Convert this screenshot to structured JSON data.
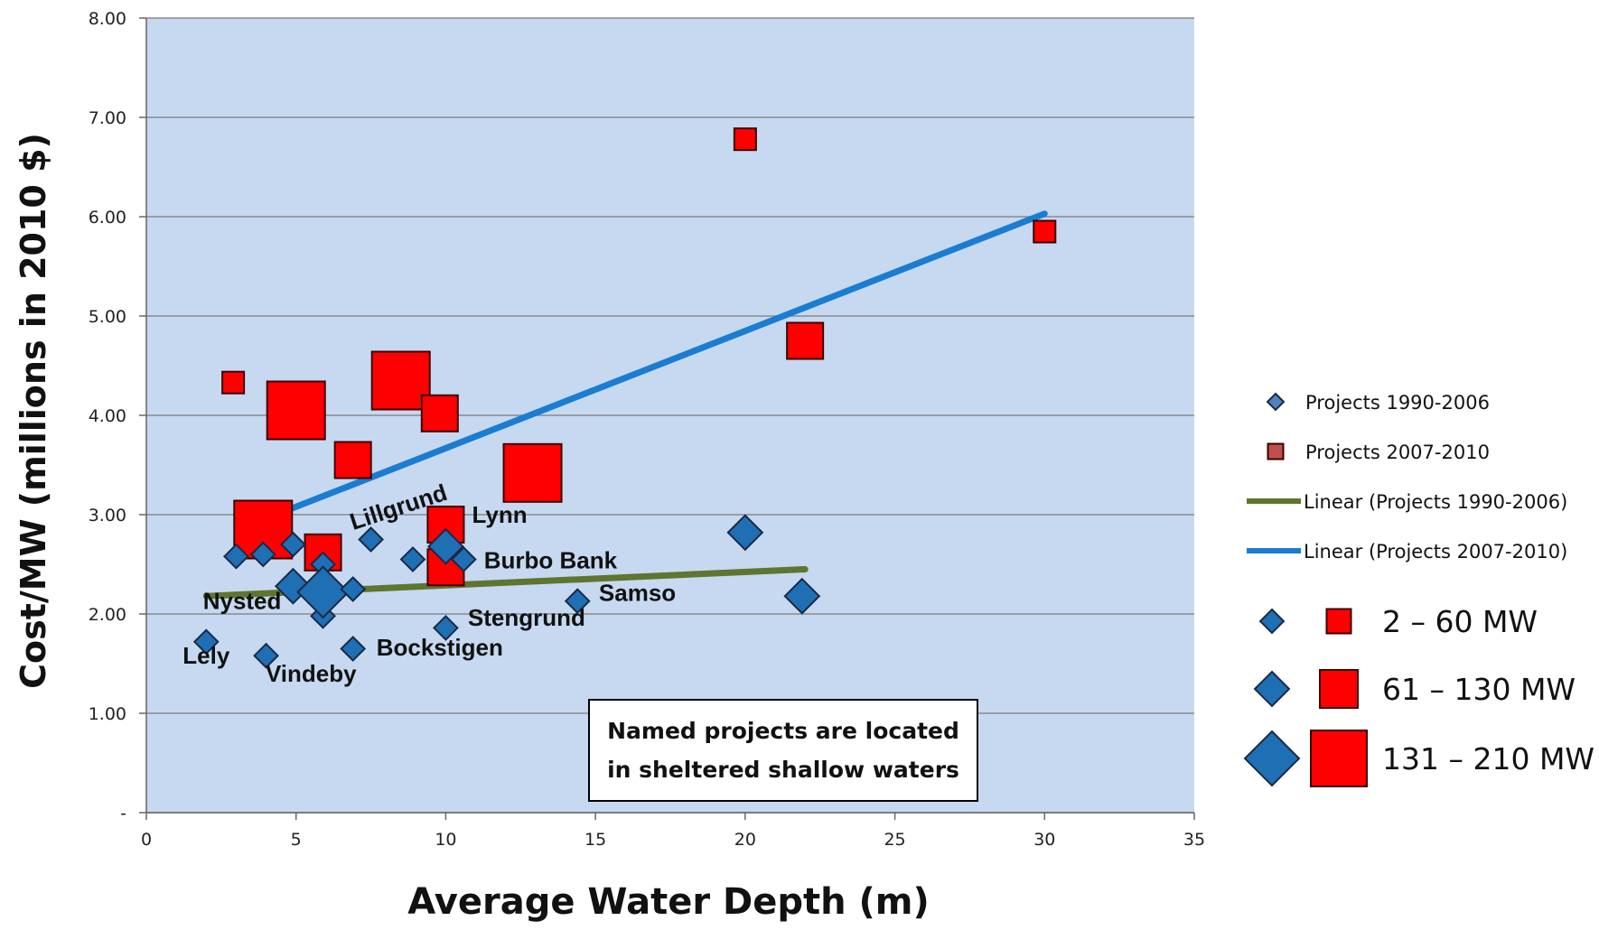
{
  "chart_data": {
    "type": "scatter",
    "xlabel": "Average Water Depth (m)",
    "ylabel": "Cost/MW (millions in 2010 $)",
    "xlim": [
      0,
      35
    ],
    "ylim": [
      0,
      8
    ],
    "x_ticks": [
      "0",
      "5",
      "10",
      "15",
      "20",
      "25",
      "30",
      "35"
    ],
    "y_ticks": [
      "-",
      "1.00",
      "2.00",
      "3.00",
      "4.00",
      "5.00",
      "6.00",
      "7.00",
      "8.00"
    ],
    "grid": "horizontal",
    "background": "#c6d9f1",
    "series": [
      {
        "name": "Projects 1990-2006",
        "marker": "diamond",
        "color": "#1f6fb5",
        "points": [
          {
            "x": 2,
            "y": 1.72,
            "size": "small"
          },
          {
            "x": 3,
            "y": 2.58,
            "size": "small"
          },
          {
            "x": 3.9,
            "y": 2.6,
            "size": "small"
          },
          {
            "x": 4.9,
            "y": 2.7,
            "size": "small"
          },
          {
            "x": 4,
            "y": 1.58,
            "size": "small"
          },
          {
            "x": 4.9,
            "y": 2.28,
            "size": "medium"
          },
          {
            "x": 5.9,
            "y": 2.5,
            "size": "small"
          },
          {
            "x": 5.9,
            "y": 1.98,
            "size": "small"
          },
          {
            "x": 5.9,
            "y": 2.22,
            "size": "large"
          },
          {
            "x": 6.9,
            "y": 2.25,
            "size": "small"
          },
          {
            "x": 7.5,
            "y": 2.75,
            "size": "small"
          },
          {
            "x": 6.9,
            "y": 1.65,
            "size": "small"
          },
          {
            "x": 8.9,
            "y": 2.55,
            "size": "small"
          },
          {
            "x": 10,
            "y": 2.68,
            "size": "medium"
          },
          {
            "x": 10.6,
            "y": 2.55,
            "size": "small"
          },
          {
            "x": 10,
            "y": 1.86,
            "size": "small"
          },
          {
            "x": 14.4,
            "y": 2.13,
            "size": "small"
          },
          {
            "x": 20,
            "y": 2.82,
            "size": "medium"
          },
          {
            "x": 21.9,
            "y": 2.18,
            "size": "medium"
          }
        ]
      },
      {
        "name": "Projects 2007-2010",
        "marker": "square",
        "color": "#ff0000",
        "points": [
          {
            "x": 2.9,
            "y": 4.33,
            "size": "small"
          },
          {
            "x": 5,
            "y": 4.05,
            "size": "large"
          },
          {
            "x": 8.5,
            "y": 4.35,
            "size": "large"
          },
          {
            "x": 9.8,
            "y": 4.02,
            "size": "medium"
          },
          {
            "x": 6.9,
            "y": 3.55,
            "size": "medium"
          },
          {
            "x": 12.9,
            "y": 3.42,
            "size": "large"
          },
          {
            "x": 3.9,
            "y": 2.85,
            "size": "large"
          },
          {
            "x": 5.9,
            "y": 2.62,
            "size": "medium"
          },
          {
            "x": 10,
            "y": 2.9,
            "size": "medium"
          },
          {
            "x": 10,
            "y": 2.47,
            "size": "medium"
          },
          {
            "x": 20,
            "y": 6.78,
            "size": "small"
          },
          {
            "x": 30,
            "y": 5.85,
            "size": "small"
          },
          {
            "x": 22,
            "y": 4.75,
            "size": "medium"
          }
        ]
      }
    ],
    "trendlines": [
      {
        "name": "Linear (Projects 1990-2006)",
        "color": "#5f7530",
        "from": [
          2,
          2.18
        ],
        "to": [
          22,
          2.45
        ]
      },
      {
        "name": "Linear (Projects 2007-2010)",
        "color": "#1a7dd1",
        "from": [
          4.5,
          3.02
        ],
        "to": [
          30,
          6.03
        ]
      }
    ],
    "annotations": [
      {
        "text": "Lely",
        "x": 2,
        "y": 1.5
      },
      {
        "text": "Nysted",
        "x": 3.2,
        "y": 2.05
      },
      {
        "text": "Vindeby",
        "x": 5.5,
        "y": 1.32
      },
      {
        "text": "Bockstigen",
        "x": 9.8,
        "y": 1.58
      },
      {
        "text": "Lillgrund",
        "x": 8.5,
        "y": 3.0,
        "rotate": -18
      },
      {
        "text": "Lynn",
        "x": 11.8,
        "y": 2.92
      },
      {
        "text": "Burbo Bank",
        "x": 13.5,
        "y": 2.46
      },
      {
        "text": "Samso",
        "x": 16.4,
        "y": 2.13
      },
      {
        "text": "Stengrund",
        "x": 12.7,
        "y": 1.88
      }
    ],
    "note": [
      "Named projects are located",
      "in sheltered shallow waters"
    ],
    "legend": {
      "placement": "right",
      "entries": [
        {
          "label": "Projects 1990-2006",
          "marker": "diamond",
          "color": "#4f81bd"
        },
        {
          "label": "Projects 2007-2010",
          "marker": "square",
          "color": "#c0504d"
        },
        {
          "label": "Linear (Projects 1990-2006)",
          "marker": "line",
          "color": "#5f7530"
        },
        {
          "label": "Linear (Projects 2007-2010)",
          "marker": "line",
          "color": "#1a7dd1"
        }
      ],
      "size_classes": [
        {
          "label": "2 – 60 MW",
          "size": "small"
        },
        {
          "label": "61 – 130 MW",
          "size": "medium"
        },
        {
          "label": "131 – 210 MW",
          "size": "large"
        }
      ]
    }
  }
}
